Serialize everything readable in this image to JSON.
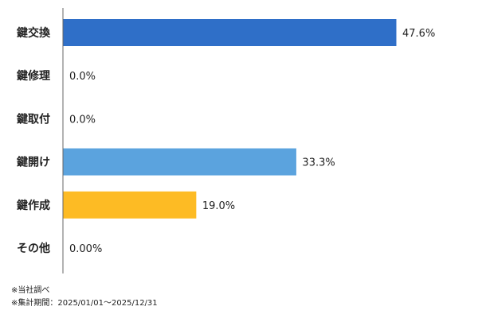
{
  "chart_data": {
    "type": "bar",
    "orientation": "horizontal",
    "categories": [
      "鍵交換",
      "鍵修理",
      "鍵取付",
      "鍵開け",
      "鍵作成",
      "その他"
    ],
    "values": [
      47.6,
      0.0,
      0.0,
      33.3,
      19.0,
      0.0
    ],
    "value_labels": [
      "47.6%",
      "0.0%",
      "0.0%",
      "33.3%",
      "19.0%",
      "0.00%"
    ],
    "colors": [
      "#2f6fc8",
      "#2f6fc8",
      "#2f6fc8",
      "#5ba3de",
      "#fdbb24",
      "#2f6fc8"
    ],
    "xlim": [
      0,
      50
    ],
    "title": "",
    "xlabel": "",
    "ylabel": "",
    "grid": false,
    "legend": "none"
  },
  "notes": {
    "source": "※当社調べ",
    "period": "※集計期間：2025/01/01～2025/12/31"
  }
}
